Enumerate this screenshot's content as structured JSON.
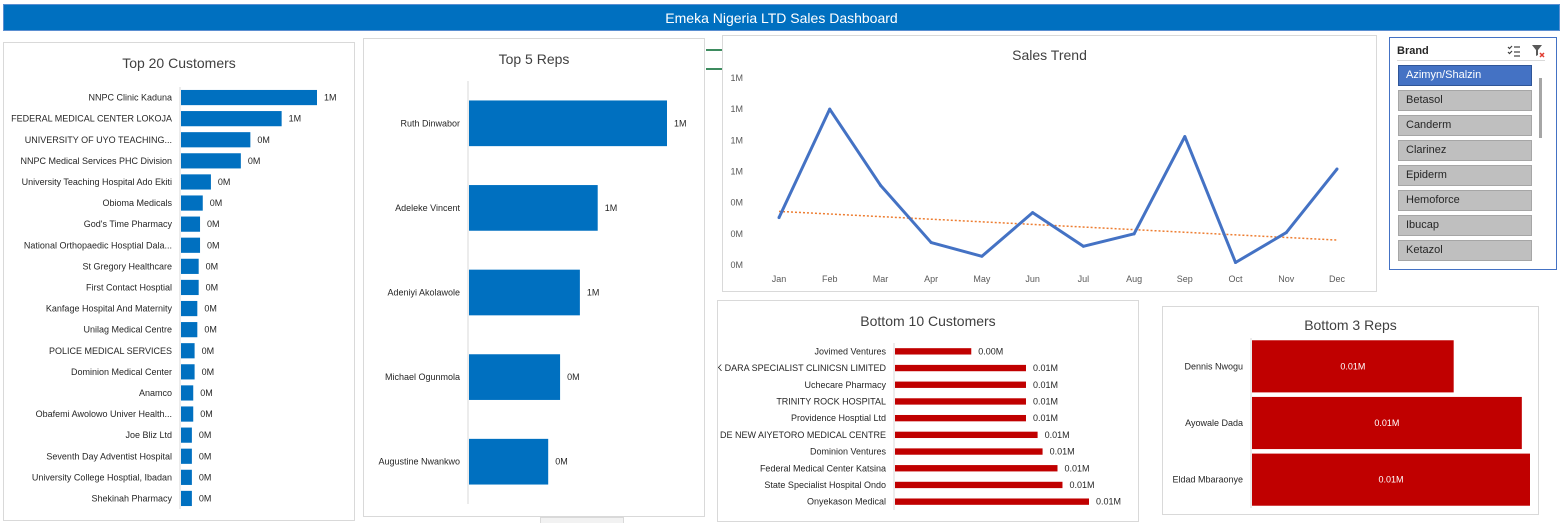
{
  "dashboard": {
    "title": "Emeka Nigeria LTD Sales Dashboard"
  },
  "slicer": {
    "title": "Brand",
    "items": [
      "Azimyn/Shalzin",
      "Betasol",
      "Canderm",
      "Clarinez",
      "Epiderm",
      "Hemoforce",
      "Ibucap",
      "Ketazol"
    ],
    "selected": "Azimyn/Shalzin",
    "icons": [
      "multi-select-icon",
      "clear-filter-icon"
    ],
    "colors": {
      "selected": "#4472c4",
      "item": "#bfbfbf"
    }
  },
  "colors": {
    "banner": "#0070c0",
    "bar_blue": "#0070c0",
    "bar_red": "#c00000",
    "line": "#4472c4",
    "trend": "#ed7d31"
  },
  "chart_data": [
    {
      "type": "bar",
      "orientation": "horizontal",
      "title": "Top 20 Customers",
      "categories": [
        "NNPC Clinic Kaduna",
        "FEDERAL MEDICAL CENTER LOKOJA",
        "UNIVERSITY OF UYO TEACHING...",
        "NNPC Medical Services PHC Division",
        "University Teaching Hospital Ado Ekiti",
        "Obioma Medicals",
        "God's Time Pharmacy",
        "National Orthopaedic Hosptial Dala...",
        "St Gregory Healthcare",
        "First Contact Hosptial",
        "Kanfage Hospital And Maternity",
        "Unilag Medical Centre",
        "POLICE MEDICAL SERVICES",
        "Dominion Medical Center",
        "Anamco",
        "Obafemi Awolowo Univer Health...",
        "Joe Bliz Ltd",
        "Seventh Day Adventist Hospital",
        "University College Hosptial, Ibadan",
        "Shekinah Pharmacy"
      ],
      "values": [
        1.0,
        0.74,
        0.51,
        0.44,
        0.22,
        0.16,
        0.14,
        0.14,
        0.13,
        0.13,
        0.12,
        0.12,
        0.1,
        0.1,
        0.09,
        0.09,
        0.08,
        0.08,
        0.08,
        0.08
      ],
      "labels": [
        "1M",
        "1M",
        "0M",
        "0M",
        "0M",
        "0M",
        "0M",
        "0M",
        "0M",
        "0M",
        "0M",
        "0M",
        "0M",
        "0M",
        "0M",
        "0M",
        "0M",
        "0M",
        "0M",
        "0M"
      ]
    },
    {
      "type": "bar",
      "orientation": "horizontal",
      "title": "Top 5 Reps",
      "categories": [
        "Ruth Dinwabor",
        "Adeleke Vincent",
        "Adeniyi Akolawole",
        "Michael Ogunmola",
        "Augustine Nwankwo"
      ],
      "values": [
        1.0,
        0.65,
        0.56,
        0.46,
        0.4
      ],
      "labels": [
        "1M",
        "1M",
        "1M",
        "0M",
        "0M"
      ]
    },
    {
      "type": "line",
      "title": "Sales Trend",
      "x": [
        "Jan",
        "Feb",
        "Mar",
        "Apr",
        "May",
        "Jun",
        "Jul",
        "Aug",
        "Sep",
        "Oct",
        "Nov",
        "Dec"
      ],
      "values": [
        0.38,
        1.25,
        0.64,
        0.18,
        0.07,
        0.42,
        0.15,
        0.25,
        1.03,
        0.02,
        0.26,
        0.77
      ],
      "trendline": {
        "type": "linear",
        "start": 0.43,
        "end": 0.2
      },
      "y_tick_labels": [
        "0M",
        "0M",
        "0M",
        "1M",
        "1M",
        "1M",
        "1M"
      ],
      "ylim": [
        0,
        1.5
      ],
      "grid": false
    },
    {
      "type": "bar",
      "orientation": "horizontal",
      "title": "Bottom 10 Customers",
      "categories": [
        "Jovimed Ventures",
        "K DARA SPECIALIST CLINICSN LIMITED",
        "Uchecare Pharmacy",
        "TRINITY ROCK HOSPITAL",
        "Providence Hosptial Ltd",
        "DE NEW AIYETORO MEDICAL CENTRE",
        "Dominion Ventures",
        "Federal Medical Center Katsina",
        "State Specialist Hospital Ondo",
        "Onyekason Medical"
      ],
      "values": [
        0.0046,
        0.0079,
        0.0079,
        0.0079,
        0.0079,
        0.0086,
        0.0089,
        0.0098,
        0.0101,
        0.0117
      ],
      "labels": [
        "0.00M",
        "0.01M",
        "0.01M",
        "0.01M",
        "0.01M",
        "0.01M",
        "0.01M",
        "0.01M",
        "0.01M",
        "0.01M"
      ]
    },
    {
      "type": "bar",
      "orientation": "horizontal",
      "title": "Bottom 3 Reps",
      "categories": [
        "Dennis Nwogu",
        "Ayowale Dada",
        "Eldad Mbaraonye"
      ],
      "values": [
        0.0074,
        0.0099,
        0.0102
      ],
      "labels": [
        "0.01M",
        "0.01M",
        "0.01M"
      ]
    }
  ]
}
